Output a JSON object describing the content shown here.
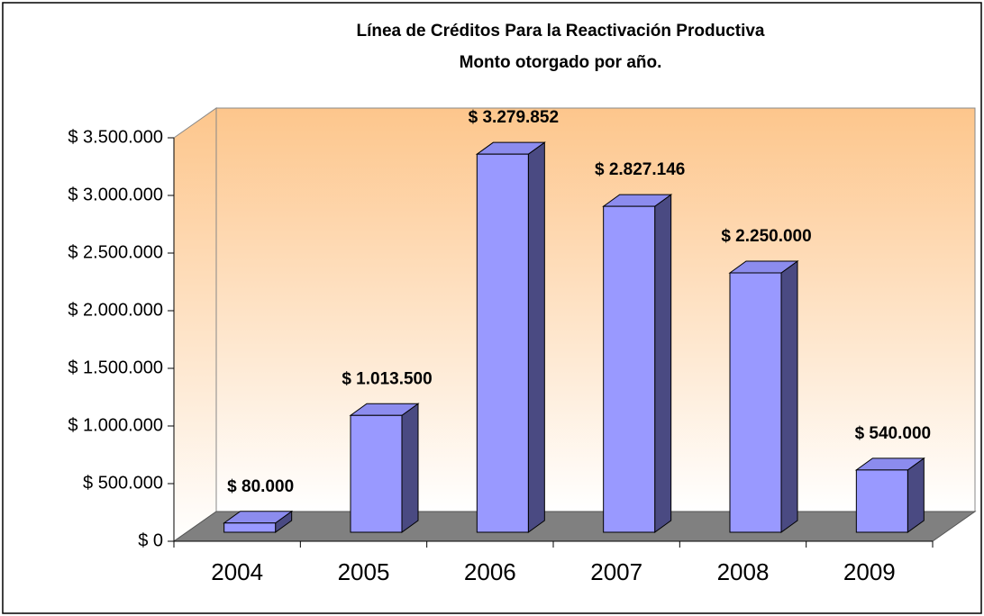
{
  "chart_data": {
    "type": "bar3d",
    "title": "Línea de Créditos Para la Reactivación Productiva",
    "subtitle": "Monto otorgado por año.",
    "categories": [
      "2004",
      "2005",
      "2006",
      "2007",
      "2008",
      "2009"
    ],
    "values": [
      80000,
      1013500,
      3279852,
      2827146,
      2250000,
      540000
    ],
    "value_labels": [
      "$ 80.000",
      "$ 1.013.500",
      "$ 3.279.852",
      "$ 2.827.146",
      "$ 2.250.000",
      "$ 540.000"
    ],
    "color": "#9999ff",
    "ylim": [
      0,
      3500000
    ],
    "yticks": [
      {
        "value": 0,
        "label": "$ 0"
      },
      {
        "value": 500000,
        "label": "$ 500.000"
      },
      {
        "value": 1000000,
        "label": "$ 1.000.000"
      },
      {
        "value": 1500000,
        "label": "$ 1.500.000"
      },
      {
        "value": 2000000,
        "label": "$ 2.000.000"
      },
      {
        "value": 2500000,
        "label": "$ 2.500.000"
      },
      {
        "value": 3000000,
        "label": "$ 3.000.000"
      },
      {
        "value": 3500000,
        "label": "$ 3.500.000"
      }
    ]
  }
}
